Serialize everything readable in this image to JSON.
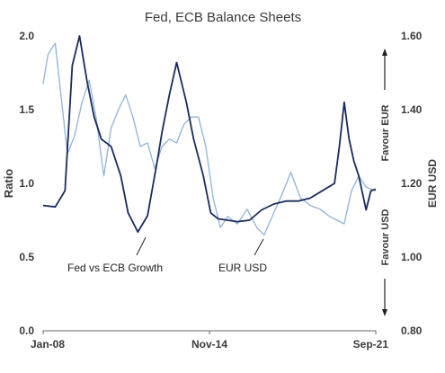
{
  "chart_data": {
    "type": "line",
    "title": "Fed, ECB Balance Sheets",
    "ylabel": "Ratio",
    "y2label": "EUR  USD",
    "x_tick_labels": [
      "Jan-08",
      "Nov-14",
      "Sep-21"
    ],
    "ylim": [
      0.0,
      2.0
    ],
    "y_ticks": [
      "0.0",
      "0.5",
      "1.0",
      "1.5",
      "2.0"
    ],
    "y2lim": [
      0.8,
      1.6
    ],
    "y2_ticks": [
      "0.80",
      "1.00",
      "1.20",
      "1.40",
      "1.60"
    ],
    "annotations": {
      "favour_eur": "Favour  EUR",
      "favour_usd": "Favour  USD",
      "fed_vs_ecb": "Fed vs ECB Growth",
      "eur_usd": "EUR USD"
    },
    "grid": false,
    "colors": {
      "fed_ecb_ratio": "#1a2b5c",
      "eur_usd": "#8fb3d9",
      "text": "#3a3a3a"
    },
    "series": [
      {
        "key": "fed_ecb_ratio",
        "axis": "left",
        "x": [
          2008.0,
          2008.5,
          2008.9,
          2009.2,
          2009.5,
          2009.8,
          2010.1,
          2010.4,
          2010.8,
          2011.2,
          2011.5,
          2011.9,
          2012.3,
          2012.7,
          2012.9,
          2013.2,
          2013.5,
          2013.9,
          2014.2,
          2014.6,
          2014.9,
          2015.2,
          2015.6,
          2016.0,
          2016.5,
          2017.0,
          2017.5,
          2018.0,
          2018.5,
          2019.0,
          2019.5,
          2020.0,
          2020.2,
          2020.4,
          2020.6,
          2020.8,
          2021.0,
          2021.3,
          2021.5,
          2021.7
        ],
        "values": [
          0.85,
          0.84,
          0.95,
          1.8,
          2.0,
          1.7,
          1.45,
          1.3,
          1.25,
          1.05,
          0.8,
          0.67,
          0.78,
          1.15,
          1.35,
          1.6,
          1.82,
          1.55,
          1.3,
          1.05,
          0.8,
          0.76,
          0.75,
          0.74,
          0.75,
          0.82,
          0.86,
          0.88,
          0.88,
          0.9,
          0.95,
          1.0,
          1.25,
          1.55,
          1.3,
          1.15,
          1.05,
          0.82,
          0.95,
          0.96
        ]
      },
      {
        "key": "eur_usd",
        "axis": "right",
        "x": [
          2008.0,
          2008.2,
          2008.5,
          2008.8,
          2009.0,
          2009.3,
          2009.6,
          2009.9,
          2010.2,
          2010.5,
          2010.8,
          2011.1,
          2011.4,
          2011.7,
          2012.0,
          2012.3,
          2012.6,
          2012.9,
          2013.2,
          2013.5,
          2013.8,
          2014.1,
          2014.4,
          2014.7,
          2015.0,
          2015.3,
          2015.6,
          2016.0,
          2016.4,
          2016.8,
          2017.1,
          2017.5,
          2017.9,
          2018.2,
          2018.6,
          2019.0,
          2019.4,
          2019.8,
          2020.1,
          2020.4,
          2020.7,
          2021.0,
          2021.3,
          2021.7
        ],
        "values": [
          1.47,
          1.55,
          1.58,
          1.4,
          1.28,
          1.33,
          1.42,
          1.48,
          1.37,
          1.22,
          1.35,
          1.4,
          1.44,
          1.38,
          1.3,
          1.31,
          1.24,
          1.3,
          1.32,
          1.31,
          1.36,
          1.38,
          1.38,
          1.3,
          1.16,
          1.08,
          1.11,
          1.09,
          1.13,
          1.08,
          1.06,
          1.12,
          1.18,
          1.23,
          1.16,
          1.14,
          1.13,
          1.11,
          1.1,
          1.09,
          1.18,
          1.22,
          1.19,
          1.18
        ]
      }
    ]
  }
}
